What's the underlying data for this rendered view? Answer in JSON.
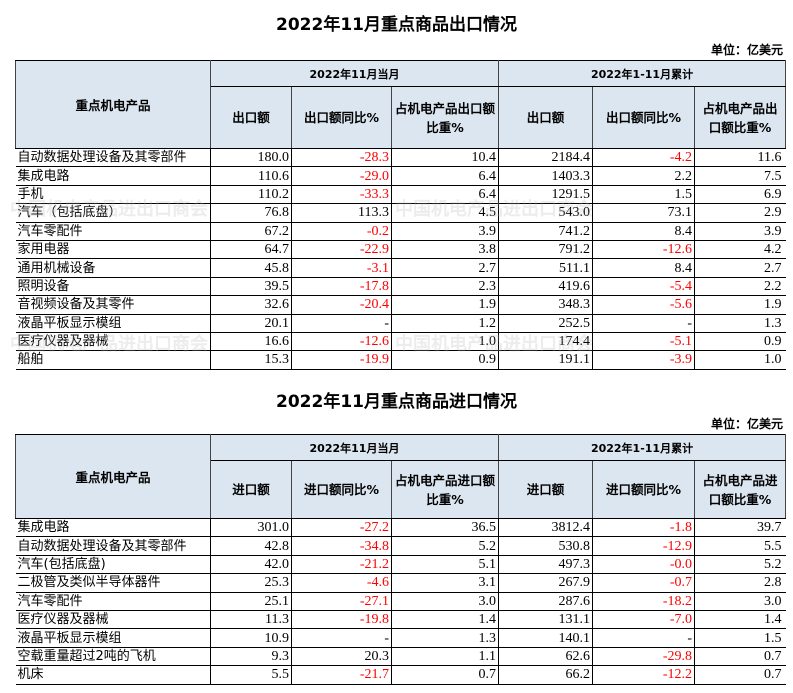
{
  "export": {
    "title": "2022年11月重点商品出口情况",
    "unit": "单位：亿美元",
    "header": {
      "product": "重点机电产品",
      "group_month": "2022年11月当月",
      "group_cum": "2022年1-11月累计",
      "cols": [
        "出口额",
        "出口额同比%",
        "占机电产品出口额比重%",
        "出口额",
        "出口额同比%",
        "占机电产品出口额比重%"
      ]
    },
    "rows": [
      [
        "自动数据处理设备及其零部件",
        "180.0",
        "-28.3",
        "10.4",
        "2184.4",
        "-4.2",
        "11.6"
      ],
      [
        "集成电路",
        "110.6",
        "-29.0",
        "6.4",
        "1403.3",
        "2.2",
        "7.5"
      ],
      [
        "手机",
        "110.2",
        "-33.3",
        "6.4",
        "1291.5",
        "1.5",
        "6.9"
      ],
      [
        "汽车（包括底盘）",
        "76.8",
        "113.3",
        "4.5",
        "543.0",
        "73.1",
        "2.9"
      ],
      [
        "汽车零配件",
        "67.2",
        "-0.2",
        "3.9",
        "741.2",
        "8.4",
        "3.9"
      ],
      [
        "家用电器",
        "64.7",
        "-22.9",
        "3.8",
        "791.2",
        "-12.6",
        "4.2"
      ],
      [
        "通用机械设备",
        "45.8",
        "-3.1",
        "2.7",
        "511.1",
        "8.4",
        "2.7"
      ],
      [
        "照明设备",
        "39.5",
        "-17.8",
        "2.3",
        "419.6",
        "-5.4",
        "2.2"
      ],
      [
        "音视频设备及其零件",
        "32.6",
        "-20.4",
        "1.9",
        "348.3",
        "-5.6",
        "1.9"
      ],
      [
        "液晶平板显示模组",
        "20.1",
        "-",
        "1.2",
        "252.5",
        "-",
        "1.3"
      ],
      [
        "医疗仪器及器械",
        "16.6",
        "-12.6",
        "1.0",
        "174.4",
        "-5.1",
        "0.9"
      ],
      [
        "船舶",
        "15.3",
        "-19.9",
        "0.9",
        "191.1",
        "-3.9",
        "1.0"
      ]
    ]
  },
  "import": {
    "title": "2022年11月重点商品进口情况",
    "unit": "单位：亿美元",
    "header": {
      "product": "重点机电产品",
      "group_month": "2022年11月当月",
      "group_cum": "2022年1-11月累计",
      "cols": [
        "进口额",
        "进口额同比%",
        "占机电产品进口额比重%",
        "进口额",
        "进口额同比%",
        "占机电产品进口额比重%"
      ]
    },
    "rows": [
      [
        "集成电路",
        "301.0",
        "-27.2",
        "36.5",
        "3812.4",
        "-1.8",
        "39.7"
      ],
      [
        "自动数据处理设备及其零部件",
        "42.8",
        "-34.8",
        "5.2",
        "530.8",
        "-12.9",
        "5.5"
      ],
      [
        "汽车(包括底盘)",
        "42.0",
        "-21.2",
        "5.1",
        "497.3",
        "-0.0",
        "5.2"
      ],
      [
        "二极管及类似半导体器件",
        "25.3",
        "-4.6",
        "3.1",
        "267.9",
        "-0.7",
        "2.8"
      ],
      [
        "汽车零配件",
        "25.1",
        "-27.1",
        "3.0",
        "287.6",
        "-18.2",
        "3.0"
      ],
      [
        "医疗仪器及器械",
        "11.3",
        "-19.8",
        "1.4",
        "131.1",
        "-7.0",
        "1.4"
      ],
      [
        "液晶平板显示模组",
        "10.9",
        "-",
        "1.3",
        "140.1",
        "-",
        "1.5"
      ],
      [
        "空载重量超过2吨的飞机",
        "9.3",
        "20.3",
        "1.1",
        "62.6",
        "-29.8",
        "0.7"
      ],
      [
        "机床",
        "5.5",
        "-21.7",
        "0.7",
        "66.2",
        "-12.2",
        "0.7"
      ]
    ]
  },
  "watermark": "中国机电产品进出口商会",
  "colors": {
    "header_bg": "#dce6f1",
    "negative": "#ff0000"
  }
}
